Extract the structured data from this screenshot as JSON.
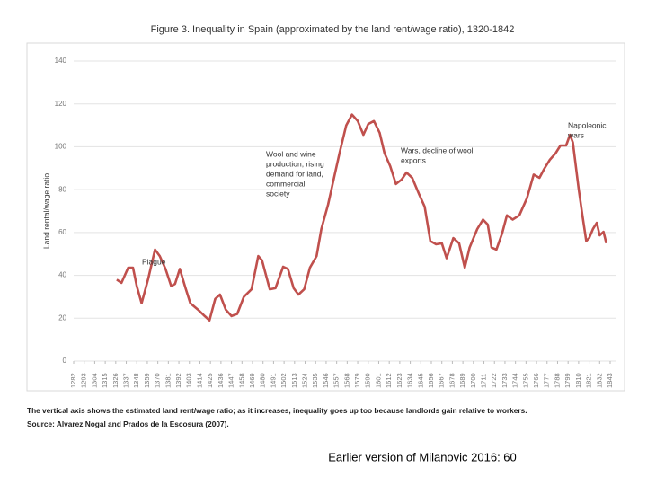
{
  "chart_data": {
    "type": "line",
    "title": "Figure 3. Inequality in Spain (approximated by the land rent/wage ratio), 1320-1842",
    "y_label": "Land rental/wage ratio",
    "x": [
      1327,
      1332,
      1339,
      1344,
      1348,
      1353,
      1360,
      1367,
      1372,
      1378,
      1384,
      1388,
      1393,
      1399,
      1404,
      1412,
      1419,
      1424,
      1430,
      1435,
      1441,
      1447,
      1453,
      1460,
      1468,
      1475,
      1479,
      1487,
      1493,
      1501,
      1506,
      1512,
      1517,
      1523,
      1529,
      1536,
      1541,
      1548,
      1555,
      1560,
      1567,
      1573,
      1579,
      1585,
      1590,
      1596,
      1602,
      1607,
      1613,
      1619,
      1625,
      1630,
      1636,
      1643,
      1649,
      1655,
      1661,
      1667,
      1672,
      1679,
      1685,
      1691,
      1696,
      1704,
      1710,
      1715,
      1719,
      1724,
      1730,
      1735,
      1741,
      1748,
      1756,
      1763,
      1769,
      1774,
      1780,
      1786,
      1791,
      1797,
      1801,
      1804,
      1810,
      1814,
      1818,
      1821,
      1825,
      1829,
      1832,
      1836,
      1839
    ],
    "series": [
      {
        "name": "Land rental/wage ratio",
        "color": "#c0504d",
        "values": [
          38,
          36.5,
          43.6,
          43.6,
          35,
          27,
          38.5,
          52,
          49,
          43,
          35,
          36,
          43,
          34,
          27,
          24,
          21,
          19,
          29,
          31,
          24,
          21,
          22,
          30,
          33.5,
          49,
          47,
          33.5,
          34,
          44,
          43,
          34,
          31,
          33.5,
          43.6,
          49,
          61.6,
          73,
          87,
          97,
          110,
          115,
          112,
          105.6,
          110.6,
          112,
          106.5,
          97,
          91,
          82.6,
          84.7,
          88,
          85.5,
          78,
          72,
          56,
          54.5,
          55,
          48,
          57.4,
          55,
          43.6,
          53,
          61.6,
          66,
          63.7,
          53,
          52,
          59.5,
          68,
          66,
          68,
          76,
          87,
          85.5,
          89.7,
          94,
          97,
          100.6,
          100.6,
          105.6,
          102,
          80.5,
          68,
          56,
          57.4,
          61.6,
          64.5,
          58.7,
          60.3,
          55
        ]
      }
    ],
    "xlim": [
      1282,
      1843
    ],
    "xticks": [
      1282,
      1293,
      1304,
      1315,
      1326,
      1337,
      1348,
      1359,
      1370,
      1381,
      1392,
      1403,
      1414,
      1425,
      1436,
      1447,
      1458,
      1469,
      1480,
      1491,
      1502,
      1513,
      1524,
      1535,
      1546,
      1557,
      1568,
      1579,
      1590,
      1601,
      1612,
      1623,
      1634,
      1645,
      1656,
      1667,
      1678,
      1689,
      1700,
      1711,
      1722,
      1733,
      1744,
      1755,
      1766,
      1777,
      1788,
      1799,
      1810,
      1821,
      1832,
      1843
    ],
    "ylim": [
      0,
      140
    ],
    "yticks": [
      0,
      20,
      40,
      60,
      80,
      100,
      120,
      140
    ],
    "grid": true,
    "annotations": [
      [
        "Plague"
      ],
      [
        "Wool and wine",
        "production, rising",
        "demand for land,",
        "commercial",
        "society"
      ],
      [
        "Wars, decline of wool",
        "exports"
      ],
      [
        "Napoleonic",
        "wars"
      ]
    ]
  },
  "caption": [
    "The vertical axis shows the estimated land rent/wage ratio; as it increases, inequality goes up too because landlords gain relative to workers.",
    "Source: Alvarez Nogal and Prados de la Escosura (2007)."
  ],
  "footer": "Earlier version of Milanovic 2016: 60"
}
